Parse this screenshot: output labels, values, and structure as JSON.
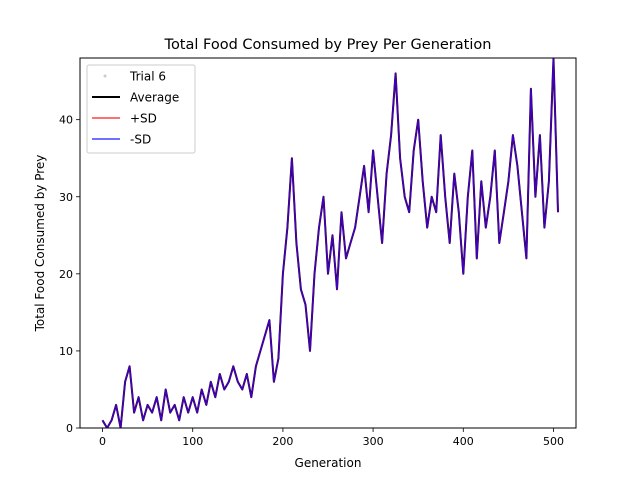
{
  "chart_data": {
    "type": "line",
    "title": "Total Food Consumed by Prey Per Generation",
    "xlabel": "Generation",
    "ylabel": "Total Food Consumed by Prey",
    "xlim": [
      -25,
      525
    ],
    "ylim": [
      0,
      48
    ],
    "x_ticks": [
      0,
      100,
      200,
      300,
      400,
      500
    ],
    "y_ticks": [
      0,
      10,
      20,
      30,
      40
    ],
    "grid": false,
    "legend": "upper left",
    "legend_entries": [
      {
        "name": "Trial 6",
        "color": "#a8b8c8",
        "style": "marker"
      },
      {
        "name": "Average",
        "color": "#000000",
        "style": "line"
      },
      {
        "name": "+SD",
        "color": "#ff0000",
        "style": "line"
      },
      {
        "name": "-SD",
        "color": "#0000ff",
        "style": "line"
      }
    ],
    "x_start": 0,
    "x_step": 5,
    "values": [
      1,
      0,
      1,
      3,
      0,
      6,
      8,
      2,
      4,
      1,
      3,
      2,
      4,
      1,
      5,
      2,
      3,
      1,
      4,
      2,
      4,
      2,
      5,
      3,
      6,
      4,
      7,
      5,
      6,
      8,
      6,
      5,
      7,
      4,
      8,
      10,
      12,
      14,
      6,
      9,
      20,
      26,
      35,
      24,
      18,
      16,
      10,
      20,
      26,
      30,
      20,
      25,
      18,
      28,
      22,
      24,
      26,
      30,
      34,
      28,
      36,
      30,
      24,
      33,
      38,
      46,
      35,
      30,
      28,
      36,
      40,
      32,
      26,
      30,
      28,
      38,
      30,
      24,
      33,
      28,
      20,
      30,
      36,
      22,
      32,
      26,
      30,
      36,
      24,
      28,
      32,
      38,
      34,
      28,
      22,
      44,
      30,
      38,
      26,
      32,
      48,
      28
    ]
  }
}
